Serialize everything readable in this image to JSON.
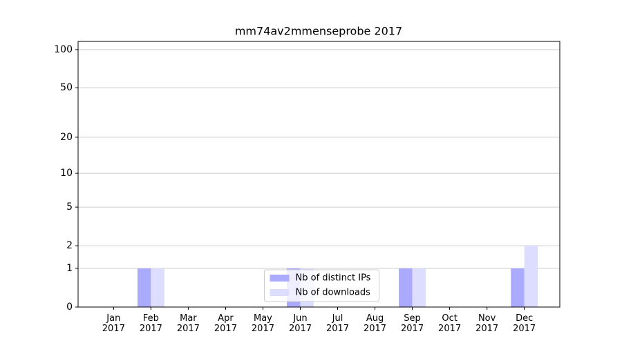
{
  "chart_data": {
    "type": "bar",
    "title": "mm74av2mmenseprobe 2017",
    "categories": [
      "Jan\n2017",
      "Feb\n2017",
      "Mar\n2017",
      "Apr\n2017",
      "May\n2017",
      "Jun\n2017",
      "Jul\n2017",
      "Aug\n2017",
      "Sep\n2017",
      "Oct\n2017",
      "Nov\n2017",
      "Dec\n2017"
    ],
    "series": [
      {
        "name": "Nb of distinct IPs",
        "color": "#aaaaff",
        "values": [
          0,
          1,
          0,
          0,
          0,
          1,
          0,
          0,
          1,
          0,
          0,
          1
        ]
      },
      {
        "name": "Nb of downloads",
        "color": "#ddddff",
        "values": [
          0,
          1,
          0,
          0,
          0,
          1,
          0,
          0,
          1,
          0,
          0,
          2
        ]
      }
    ],
    "yscale": "symlog",
    "ylim": [
      0,
      116
    ],
    "yticks": [
      0,
      1,
      2,
      5,
      10,
      20,
      50,
      100
    ],
    "grid": true,
    "legend": "lower center"
  }
}
